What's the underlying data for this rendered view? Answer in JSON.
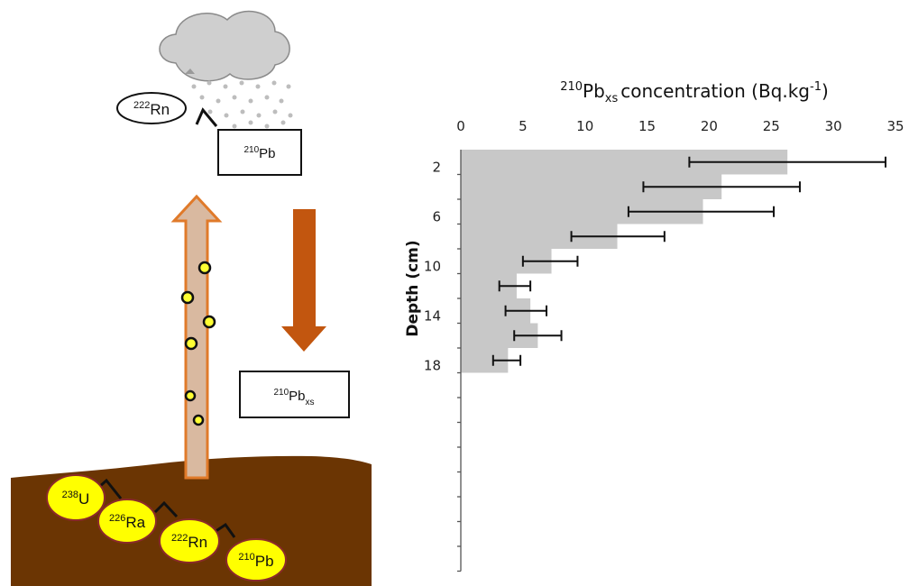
{
  "diagram": {
    "top_species_oval": {
      "mass": "222",
      "element": "Rn"
    },
    "atm_box": {
      "mass": "210",
      "element": "Pb"
    },
    "xs_box": {
      "mass": "210",
      "element": "Pb",
      "sub": "xs"
    },
    "soil_chain": [
      {
        "mass": "238",
        "element": "U"
      },
      {
        "mass": "226",
        "element": "Ra"
      },
      {
        "mass": "222",
        "element": "Rn"
      },
      {
        "mass": "210",
        "element": "Pb"
      }
    ],
    "colors": {
      "soil": "#6b3503",
      "arrow_up_outline": "#e07a2a",
      "arrow_up_fill": "#d9b9a0",
      "arrow_down": "#c2560f",
      "nuclide_fill": "#ffff00",
      "nuclide_edge": "#8b2a2a",
      "cloud": "#d0d0d0"
    }
  },
  "chart_data": {
    "type": "bar",
    "orientation": "horizontal",
    "title": {
      "mass": "210",
      "element": "Pb",
      "sub": "xs",
      "text": "concentration (Bq.kg",
      "sup": "-1",
      "close": ")"
    },
    "xlabel_ticks": [
      "0",
      "5",
      "10",
      "15",
      "20",
      "25",
      "30",
      "35"
    ],
    "xlim": [
      0,
      35
    ],
    "ylabel": "Depth (cm)",
    "ytick_labels": [
      "2",
      "6",
      "10",
      "14",
      "18"
    ],
    "ylim_cm": [
      0,
      34
    ],
    "depth_intervals": [
      [
        0,
        2
      ],
      [
        2,
        4
      ],
      [
        4,
        6
      ],
      [
        6,
        8
      ],
      [
        8,
        10
      ],
      [
        10,
        12
      ],
      [
        12,
        14
      ],
      [
        14,
        16
      ],
      [
        16,
        18
      ]
    ],
    "values": [
      26.3,
      21.0,
      19.5,
      12.6,
      7.3,
      4.5,
      5.6,
      6.2,
      3.8
    ],
    "error_bars": [
      {
        "low": 18.4,
        "high": 34.2
      },
      {
        "low": 14.7,
        "high": 27.3
      },
      {
        "low": 13.5,
        "high": 25.2
      },
      {
        "low": 8.9,
        "high": 16.4
      },
      {
        "low": 5.0,
        "high": 9.4
      },
      {
        "low": 3.1,
        "high": 5.6
      },
      {
        "low": 3.6,
        "high": 6.9
      },
      {
        "low": 4.3,
        "high": 8.1
      },
      {
        "low": 2.6,
        "high": 4.8
      }
    ],
    "bar_color": "#c8c8c8",
    "grid": false
  }
}
